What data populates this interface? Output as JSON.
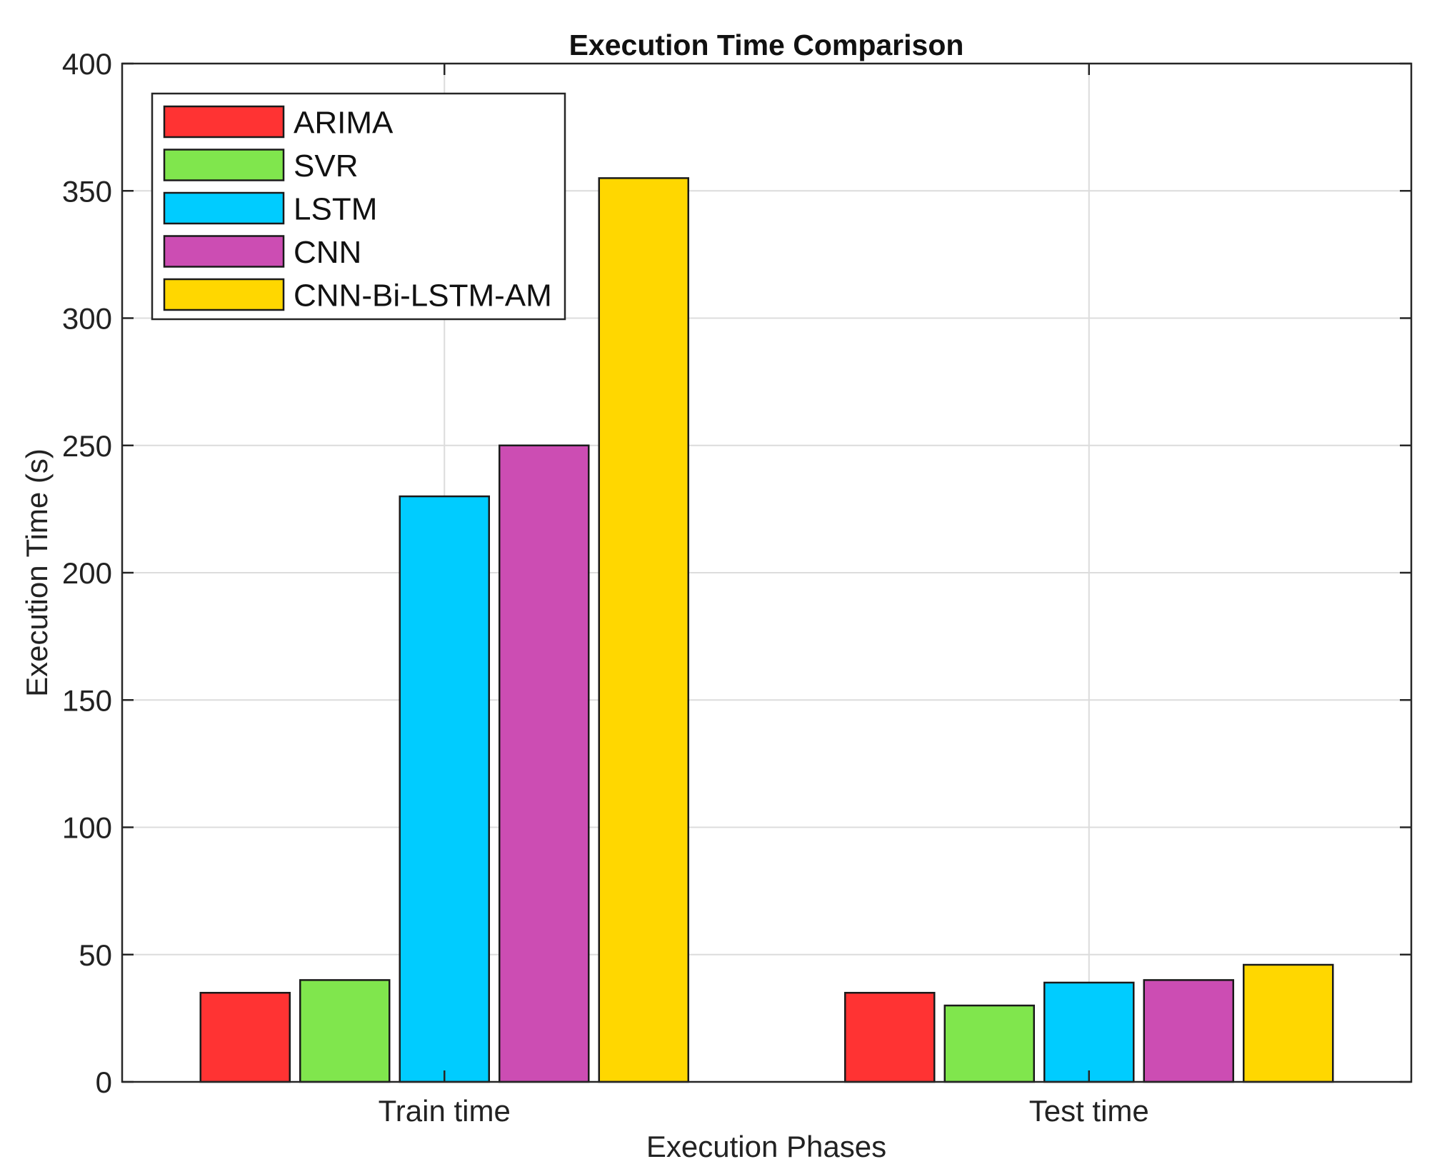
{
  "chart_data": {
    "type": "bar",
    "title": "Execution Time Comparison",
    "xlabel": "Execution Phases",
    "ylabel": "Execution Time (s)",
    "categories": [
      "Train time",
      "Test time"
    ],
    "ylim": [
      0,
      400
    ],
    "yticks": [
      0,
      50,
      100,
      150,
      200,
      250,
      300,
      350,
      400
    ],
    "grid": true,
    "legend_position": "top-left",
    "series": [
      {
        "name": "ARIMA",
        "color": "#ff3333",
        "values": [
          35,
          35
        ]
      },
      {
        "name": "SVR",
        "color": "#80e64d",
        "values": [
          40,
          30
        ]
      },
      {
        "name": "LSTM",
        "color": "#00ccff",
        "values": [
          230,
          39
        ]
      },
      {
        "name": "CNN",
        "color": "#cc4db3",
        "values": [
          250,
          40
        ]
      },
      {
        "name": "CNN-Bi-LSTM-AM",
        "color": "#ffd700",
        "values": [
          355,
          46
        ]
      }
    ]
  }
}
